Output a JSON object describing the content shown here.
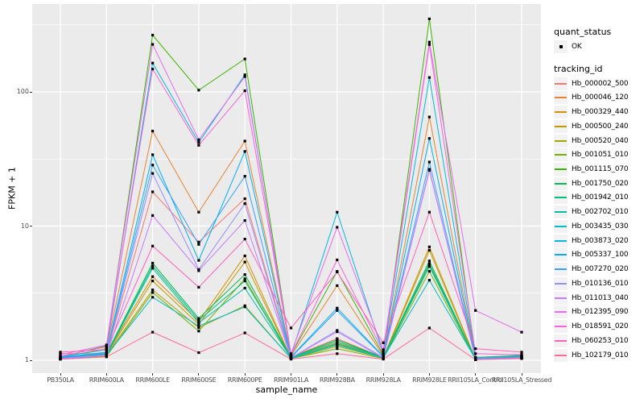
{
  "figure": {
    "x_axis_title": "sample_name",
    "y_axis_title": "FPKM + 1"
  },
  "legend": {
    "quant_status_title": "quant_status",
    "quant_status_items": [
      "OK"
    ],
    "tracking_id_title": "tracking_id"
  },
  "style": {
    "panel_bg": "#EBEBEB",
    "grid_color": "#FFFFFF",
    "point_color": "#000000",
    "axis_text_color": "#4D4D4D",
    "tick_mark_color": "#333333",
    "legend_key_bg": "#F2F2F2"
  },
  "chart_data": {
    "type": "line",
    "title": "",
    "xlabel": "sample_name",
    "ylabel": "FPKM + 1",
    "y_scale": "log10",
    "ylim": [
      0.83,
      420
    ],
    "y_major_ticks": [
      1,
      10,
      100
    ],
    "y_minor_gridlines": [
      3.1623,
      31.623,
      316.23
    ],
    "grid": true,
    "legend_position": "right",
    "point_shape": "small-black-square",
    "x_categories": [
      "PB350LA",
      "RRIM600LA",
      "RRIM600LE",
      "RRIM600SE",
      "RRIM600PE",
      "RRIM901LA",
      "RRIM928BA",
      "RRIM928LA",
      "RRIM928LE",
      "RRII105LA_Control",
      "RRII105LA_Stressed"
    ],
    "series": [
      {
        "name": "Hb_000002_500",
        "color": "#F8766D",
        "values": [
          1.12,
          1.12,
          18,
          7.6,
          16,
          1.06,
          1.45,
          1.05,
          5.2,
          1.03,
          1.05
        ]
      },
      {
        "name": "Hb_000046_120",
        "color": "#EA8331",
        "values": [
          1.05,
          1.22,
          51,
          12.7,
          43,
          1.08,
          3.6,
          1.08,
          65,
          1.04,
          1.07
        ]
      },
      {
        "name": "Hb_000329_440",
        "color": "#D89000",
        "values": [
          1.04,
          1.12,
          4.2,
          1.95,
          6.0,
          1.04,
          1.35,
          1.05,
          7.0,
          1.02,
          1.05
        ]
      },
      {
        "name": "Hb_000500_240",
        "color": "#C09B00",
        "values": [
          1.03,
          1.1,
          3.9,
          1.85,
          5.4,
          1.04,
          1.32,
          1.04,
          6.6,
          1.02,
          1.04
        ]
      },
      {
        "name": "Hb_000520_040",
        "color": "#A3A500",
        "values": [
          1.03,
          1.09,
          3.35,
          1.75,
          2.55,
          1.03,
          1.27,
          1.04,
          5.1,
          1.02,
          1.04
        ]
      },
      {
        "name": "Hb_001051_010",
        "color": "#7CAE00",
        "values": [
          1.02,
          1.07,
          3.2,
          1.65,
          4.05,
          1.03,
          1.22,
          1.03,
          4.6,
          1.01,
          1.03
        ]
      },
      {
        "name": "Hb_001115_070",
        "color": "#39B600",
        "values": [
          1.06,
          1.28,
          265,
          103,
          176,
          1.1,
          4.6,
          1.1,
          350,
          1.05,
          1.09
        ]
      },
      {
        "name": "Hb_001750_020",
        "color": "#00BB4E",
        "values": [
          1.04,
          1.12,
          5.3,
          2.05,
          4.35,
          1.05,
          1.42,
          1.05,
          5.5,
          1.02,
          1.05
        ]
      },
      {
        "name": "Hb_001942_010",
        "color": "#00BF7D",
        "values": [
          1.03,
          1.11,
          5.05,
          1.98,
          3.9,
          1.05,
          1.38,
          1.05,
          5.25,
          1.02,
          1.05
        ]
      },
      {
        "name": "Hb_002702_010",
        "color": "#00C1A3",
        "values": [
          1.03,
          1.1,
          4.85,
          1.9,
          3.45,
          1.04,
          1.33,
          1.04,
          5.0,
          1.02,
          1.04
        ]
      },
      {
        "name": "Hb_003435_030",
        "color": "#00BFC4",
        "values": [
          1.02,
          1.09,
          2.95,
          1.8,
          2.5,
          1.03,
          1.3,
          1.04,
          3.95,
          1.02,
          1.04
        ]
      },
      {
        "name": "Hb_003873_020",
        "color": "#00BAE0",
        "values": [
          1.06,
          1.2,
          164,
          42,
          134,
          1.09,
          12.7,
          1.12,
          128,
          1.05,
          1.08
        ]
      },
      {
        "name": "Hb_005337_100",
        "color": "#00B0F6",
        "values": [
          1.05,
          1.15,
          34,
          5.55,
          36,
          1.06,
          2.45,
          1.07,
          45,
          1.03,
          1.06
        ]
      },
      {
        "name": "Hb_007270_020",
        "color": "#35A2FF",
        "values": [
          1.04,
          1.13,
          28.5,
          7.3,
          23.5,
          1.05,
          2.35,
          1.06,
          30,
          1.03,
          1.05
        ]
      },
      {
        "name": "Hb_010136_010",
        "color": "#9590FF",
        "values": [
          1.03,
          1.1,
          24.7,
          4.75,
          14.7,
          1.04,
          1.67,
          1.05,
          26.5,
          1.02,
          1.04
        ]
      },
      {
        "name": "Hb_011013_040",
        "color": "#C77CFF",
        "values": [
          1.03,
          1.09,
          12,
          4.65,
          11,
          1.04,
          1.63,
          1.04,
          26,
          1.02,
          1.04
        ]
      },
      {
        "name": "Hb_012395_090",
        "color": "#E76BF3",
        "values": [
          1.1,
          1.3,
          226,
          44,
          130,
          1.12,
          9.8,
          1.2,
          235,
          2.35,
          1.62
        ]
      },
      {
        "name": "Hb_018591_020",
        "color": "#FA62DB",
        "values": [
          1.07,
          1.26,
          148,
          40,
          102,
          1.1,
          5.6,
          1.15,
          225,
          1.12,
          1.1
        ]
      },
      {
        "name": "Hb_060253_010",
        "color": "#FF62BC",
        "values": [
          1.15,
          1.2,
          7.1,
          3.5,
          8.0,
          1.74,
          4.55,
          1.35,
          12.7,
          1.22,
          1.15
        ]
      },
      {
        "name": "Hb_102179_010",
        "color": "#FF6A98",
        "values": [
          1.02,
          1.06,
          1.62,
          1.14,
          1.6,
          1.02,
          1.12,
          1.02,
          1.74,
          1.01,
          1.03
        ]
      }
    ]
  }
}
